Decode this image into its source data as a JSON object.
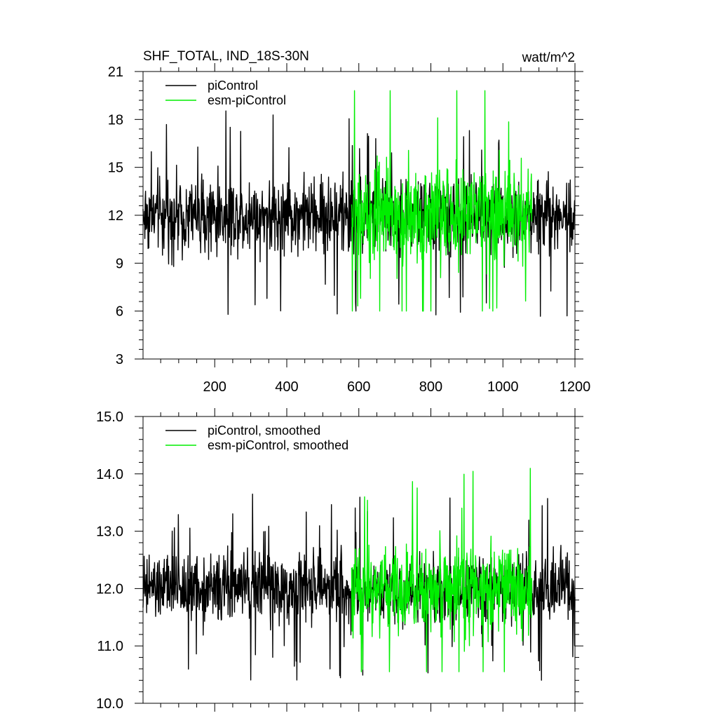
{
  "header": {
    "title": "SHF_TOTAL, IND_18S-30N",
    "units": "watt/m^2"
  },
  "colors": {
    "piControl": "#000000",
    "esm_piControl": "#00ee00"
  },
  "chart_data": [
    {
      "type": "line",
      "title": "SHF_TOTAL, IND_18S-30N",
      "units": "watt/m^2",
      "xlim": [
        1,
        1200
      ],
      "ylim": [
        3,
        21
      ],
      "x_ticks": [
        200,
        400,
        600,
        800,
        1000,
        1200
      ],
      "x_tick_labels": [
        "200",
        "400",
        "600",
        "800",
        "1000",
        "1200"
      ],
      "y_ticks": [
        3,
        6,
        9,
        12,
        15,
        18,
        21
      ],
      "y_tick_labels": [
        "3",
        "6",
        "9",
        "12",
        "15",
        "18",
        "21"
      ],
      "grid": false,
      "legend_position": "top-left",
      "series": [
        {
          "name": "piControl",
          "color": "#000000",
          "x_range": [
            1,
            1200
          ],
          "mean": 12.0,
          "typical_range": [
            9,
            15
          ],
          "extremes": [
            5.4,
            19.4
          ],
          "amplitude": 3.0
        },
        {
          "name": "esm-piControl",
          "color": "#00ee00",
          "x_range": [
            580,
            1080
          ],
          "mean": 12.0,
          "typical_range": [
            8,
            16
          ],
          "extremes": [
            6.0,
            19.8
          ],
          "amplitude": 4.0
        }
      ]
    },
    {
      "type": "line",
      "xlim": [
        1,
        1200
      ],
      "ylim": [
        10.0,
        15.0
      ],
      "x_ticks": [
        200,
        400,
        600,
        800,
        1000,
        1200
      ],
      "y_ticks": [
        10.0,
        11.0,
        12.0,
        13.0,
        14.0,
        15.0
      ],
      "y_tick_labels": [
        "10.0",
        "11.0",
        "12.0",
        "13.0",
        "14.0",
        "15.0"
      ],
      "grid": false,
      "legend_position": "top-left",
      "series": [
        {
          "name": "piControl, smoothed",
          "color": "#000000",
          "x_range": [
            1,
            1200
          ],
          "mean": 12.0,
          "typical_range": [
            11.2,
            12.9
          ],
          "extremes": [
            10.15,
            13.7
          ],
          "amplitude": 0.75
        },
        {
          "name": "esm-piControl, smoothed",
          "color": "#00ee00",
          "x_range": [
            580,
            1080
          ],
          "mean": 12.0,
          "typical_range": [
            11.0,
            13.2
          ],
          "extremes": [
            10.55,
            14.1
          ],
          "amplitude": 1.0
        }
      ]
    }
  ]
}
